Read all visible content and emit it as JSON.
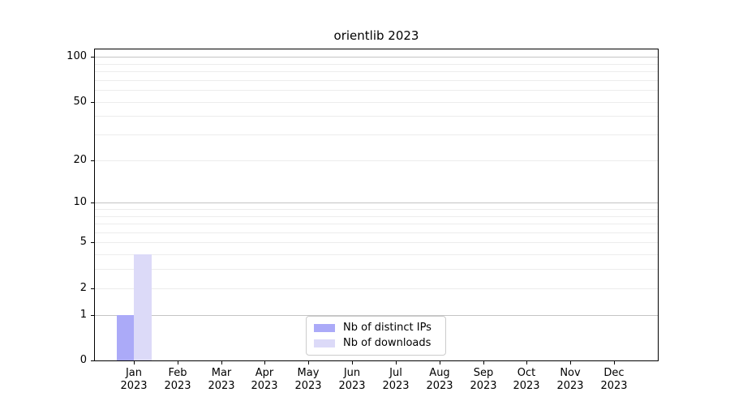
{
  "figure": {
    "title": "orientlib 2023",
    "background": "#ffffff"
  },
  "chart_data": {
    "type": "bar",
    "title": "orientlib 2023",
    "yscale": "log1p",
    "ylim": [
      0,
      112
    ],
    "yticks": [
      0,
      1,
      2,
      5,
      10,
      20,
      50,
      100
    ],
    "grid_major": [
      1,
      10,
      100
    ],
    "grid_minor": [
      2,
      3,
      4,
      5,
      6,
      7,
      8,
      9,
      20,
      30,
      40,
      50,
      60,
      70,
      80,
      90
    ],
    "x_categories": [
      "Jan",
      "Feb",
      "Mar",
      "Apr",
      "May",
      "Jun",
      "Jul",
      "Aug",
      "Sep",
      "Oct",
      "Nov",
      "Dec"
    ],
    "x_year": "2023",
    "series": [
      {
        "name": "Nb of distinct IPs",
        "color": "#abaaf8",
        "values": [
          1,
          0,
          0,
          0,
          0,
          0,
          0,
          0,
          0,
          0,
          0,
          0
        ]
      },
      {
        "name": "Nb of downloads",
        "color": "#dcdaf8",
        "values": [
          4,
          0,
          0,
          0,
          0,
          0,
          0,
          0,
          0,
          0,
          0,
          0
        ]
      }
    ],
    "legend": {
      "location": "lower center, inside plot",
      "entries": [
        "Nb of distinct IPs",
        "Nb of downloads"
      ]
    }
  },
  "colors": {
    "grid_major": "#c4c4c4",
    "grid_minor": "#ececec",
    "spine": "#000000",
    "text": "#000000"
  }
}
